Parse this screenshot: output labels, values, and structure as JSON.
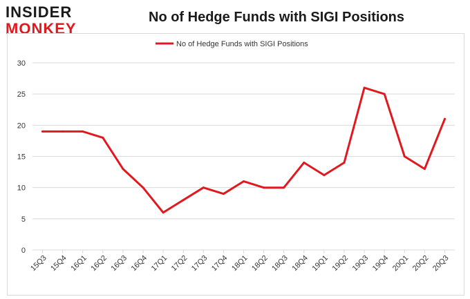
{
  "logo": {
    "line1": "INSIDER",
    "line2": "MONKEY"
  },
  "colors": {
    "series": "#e0191f",
    "grid": "#d9d9d9",
    "axis_text": "#333333"
  },
  "chart_data": {
    "type": "line",
    "title": "No of Hedge Funds with SIGI Positions",
    "xlabel": "",
    "ylabel": "",
    "ylim": [
      0,
      30
    ],
    "yticks": [
      0,
      5,
      10,
      15,
      20,
      25,
      30
    ],
    "legend": "top-center",
    "categories": [
      "15Q3",
      "15Q4",
      "16Q1",
      "16Q2",
      "16Q3",
      "16Q4",
      "17Q1",
      "17Q2",
      "17Q3",
      "17Q4",
      "18Q1",
      "18Q2",
      "18Q3",
      "18Q4",
      "19Q1",
      "19Q2",
      "19Q3",
      "19Q4",
      "20Q1",
      "20Q2",
      "20Q3"
    ],
    "series": [
      {
        "name": "No of Hedge Funds with SIGI Positions",
        "values": [
          19,
          19,
          19,
          18,
          13,
          10,
          6,
          8,
          10,
          9,
          11,
          10,
          10,
          14,
          12,
          14,
          26,
          25,
          15,
          13,
          21
        ]
      }
    ]
  }
}
